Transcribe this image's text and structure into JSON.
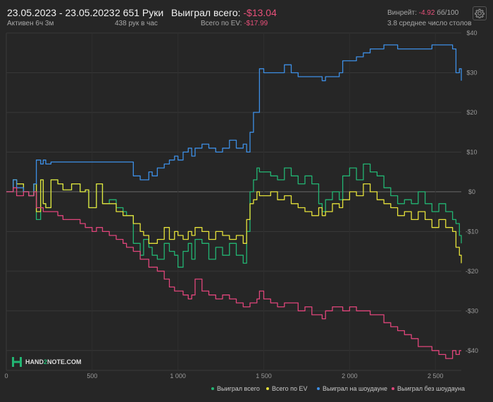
{
  "header": {
    "date_range": "23.05.2023 - 23.05.2023",
    "active": "Активен 6ч 3м",
    "hands": "2 651 Руки",
    "hands_per_hour": "438 рук в час",
    "won_total_label": "Выиграл всего:",
    "won_total_value": "-$13.04",
    "ev_total_label": "Всего по EV:",
    "ev_total_value": "-$17.99",
    "winrate_label": "Винрейт:",
    "winrate_value": "-4.92",
    "winrate_unit": "бб/100",
    "avg_tables": "3.8 среднее число столов"
  },
  "logo": {
    "text_a": "HAND",
    "text_b": "2",
    "text_c": "NOTE.COM"
  },
  "colors": {
    "won": "#22b573",
    "ev": "#e6e23a",
    "showdown": "#3d8fe6",
    "nonshowdown": "#e0457b",
    "negative": "#e8507a"
  },
  "icons": {
    "settings": "gear-icon"
  },
  "chart_data": {
    "type": "line",
    "xlim": [
      0,
      2651
    ],
    "ylim": [
      -45,
      40
    ],
    "x_ticks": [
      0,
      500,
      1000,
      1500,
      2000,
      2500
    ],
    "x_tick_labels": [
      "0",
      "500",
      "1 000",
      "1 500",
      "2 000",
      "2 500"
    ],
    "y_ticks": [
      40,
      30,
      20,
      10,
      0,
      -10,
      -20,
      -30,
      -40
    ],
    "y_tick_labels": [
      "$40",
      "$30",
      "$20",
      "$10",
      "$0",
      "-$10",
      "-$20",
      "-$30",
      "-$40"
    ],
    "grid": true,
    "legend_position": "bottom-right",
    "series": [
      {
        "name": "Выиграл всего",
        "color": "#22b573",
        "x": [
          0,
          40,
          60,
          100,
          130,
          160,
          175,
          200,
          215,
          230,
          260,
          300,
          330,
          380,
          430,
          460,
          480,
          500,
          525,
          560,
          600,
          640,
          680,
          700,
          740,
          780,
          800,
          830,
          850,
          880,
          920,
          950,
          980,
          1000,
          1030,
          1060,
          1080,
          1100,
          1140,
          1180,
          1220,
          1260,
          1300,
          1340,
          1380,
          1400,
          1420,
          1440,
          1460,
          1475,
          1500,
          1540,
          1580,
          1620,
          1660,
          1700,
          1740,
          1780,
          1820,
          1840,
          1860,
          1900,
          1940,
          1960,
          2000,
          2040,
          2080,
          2120,
          2160,
          2200,
          2240,
          2280,
          2320,
          2360,
          2400,
          2440,
          2480,
          2520,
          2560,
          2600,
          2620,
          2640,
          2651
        ],
        "y": [
          0,
          3,
          2,
          0,
          -1,
          2,
          -7,
          3,
          -3,
          -4,
          3,
          2,
          0.5,
          2,
          0,
          0.5,
          -4,
          -4,
          2,
          -3,
          -2,
          -4,
          -5,
          -6,
          -13,
          -16,
          -12,
          -14,
          -16,
          -17,
          -13,
          -15,
          -16,
          -19,
          -15,
          -13,
          -17,
          -12,
          -13,
          -17,
          -14,
          -16,
          -13,
          -16,
          -18,
          -10,
          0,
          3,
          6,
          5,
          5,
          4,
          3,
          6,
          4,
          2,
          4,
          2,
          -3,
          -5,
          -2,
          0,
          -2,
          4,
          6,
          3,
          7,
          5,
          4,
          1,
          -1,
          -3,
          -2,
          -3,
          0,
          -3,
          -5,
          -3,
          -5,
          -7,
          -8,
          -11,
          -13
        ]
      },
      {
        "name": "Всего по EV",
        "color": "#e6e23a",
        "x": [
          0,
          40,
          60,
          100,
          130,
          160,
          175,
          200,
          215,
          230,
          260,
          300,
          330,
          380,
          430,
          460,
          480,
          500,
          525,
          560,
          600,
          640,
          680,
          700,
          740,
          780,
          800,
          830,
          850,
          880,
          920,
          950,
          980,
          1000,
          1030,
          1060,
          1080,
          1100,
          1140,
          1180,
          1220,
          1260,
          1300,
          1340,
          1380,
          1400,
          1420,
          1440,
          1460,
          1475,
          1500,
          1540,
          1580,
          1620,
          1660,
          1700,
          1740,
          1780,
          1820,
          1840,
          1860,
          1900,
          1940,
          1960,
          2000,
          2040,
          2080,
          2120,
          2160,
          2200,
          2240,
          2280,
          2320,
          2360,
          2400,
          2440,
          2480,
          2520,
          2560,
          2600,
          2620,
          2640,
          2651
        ],
        "y": [
          0,
          3,
          2,
          0,
          -1,
          2,
          -5,
          3,
          -3,
          -4,
          3,
          2,
          0.5,
          2,
          0,
          0.5,
          -4,
          -4,
          2,
          -3,
          -3,
          -5,
          -6,
          -6,
          -8,
          -10,
          -11,
          -13,
          -13,
          -12,
          -9,
          -12,
          -10,
          -11,
          -12,
          -10,
          -11,
          -9,
          -10,
          -12,
          -10,
          -11,
          -12,
          -11,
          -13,
          -7,
          -3,
          -2,
          0,
          -1,
          -1,
          0,
          -2,
          -1,
          -3,
          -4,
          -5,
          -6,
          -4,
          -6,
          -5,
          -3,
          -4,
          -2,
          0,
          -1,
          2,
          0,
          -2,
          -3,
          -4,
          -6,
          -5,
          -7,
          -5,
          -7,
          -9,
          -7,
          -9,
          -10,
          -14,
          -16,
          -18
        ]
      },
      {
        "name": "Выиграл на шоудауне",
        "color": "#3d8fe6",
        "x": [
          0,
          40,
          60,
          100,
          130,
          160,
          175,
          200,
          215,
          230,
          260,
          300,
          330,
          380,
          430,
          460,
          480,
          500,
          525,
          560,
          600,
          640,
          680,
          700,
          740,
          780,
          800,
          830,
          850,
          880,
          920,
          950,
          980,
          1000,
          1030,
          1060,
          1080,
          1100,
          1140,
          1180,
          1220,
          1260,
          1300,
          1340,
          1380,
          1400,
          1420,
          1440,
          1460,
          1475,
          1500,
          1540,
          1580,
          1620,
          1660,
          1700,
          1740,
          1780,
          1820,
          1840,
          1860,
          1900,
          1940,
          1960,
          2000,
          2040,
          2080,
          2120,
          2160,
          2200,
          2240,
          2280,
          2320,
          2360,
          2400,
          2440,
          2480,
          2520,
          2560,
          2600,
          2620,
          2640,
          2651
        ],
        "y": [
          0,
          3,
          1,
          0,
          -1,
          2,
          8,
          7,
          8,
          7,
          7.5,
          7.5,
          7.5,
          7.5,
          7.5,
          7.5,
          7.5,
          7.5,
          7.5,
          7.5,
          7.5,
          7.5,
          7.5,
          7.5,
          4,
          3,
          3,
          5,
          4,
          6,
          7,
          8,
          9,
          8,
          10,
          11,
          9,
          11,
          12,
          11,
          10,
          11,
          13,
          11,
          12,
          10,
          15,
          20,
          20,
          31,
          30,
          30,
          30,
          32,
          30,
          29,
          29,
          29,
          29,
          28,
          29,
          29,
          30,
          33,
          33,
          34,
          35,
          36,
          36,
          37,
          37,
          36,
          36,
          36,
          36,
          36,
          37,
          37,
          37,
          36,
          30,
          31,
          28
        ]
      },
      {
        "name": "Выиграл без шоудауна",
        "color": "#e0457b",
        "x": [
          0,
          40,
          60,
          100,
          130,
          160,
          175,
          200,
          215,
          230,
          260,
          300,
          330,
          380,
          430,
          460,
          480,
          500,
          525,
          560,
          600,
          640,
          680,
          700,
          740,
          780,
          800,
          830,
          850,
          880,
          920,
          950,
          980,
          1000,
          1030,
          1060,
          1080,
          1100,
          1140,
          1180,
          1220,
          1260,
          1300,
          1340,
          1380,
          1400,
          1420,
          1440,
          1460,
          1475,
          1500,
          1540,
          1580,
          1620,
          1660,
          1700,
          1740,
          1780,
          1820,
          1840,
          1860,
          1900,
          1940,
          1960,
          2000,
          2040,
          2080,
          2120,
          2160,
          2200,
          2240,
          2280,
          2320,
          2360,
          2400,
          2440,
          2480,
          2520,
          2560,
          2600,
          2620,
          2640,
          2651
        ],
        "y": [
          0,
          1,
          -1,
          0,
          -1,
          0,
          -4,
          -4,
          -5,
          -5,
          -5,
          -6,
          -7,
          -7,
          -8,
          -9,
          -9,
          -10,
          -9,
          -10,
          -11,
          -12,
          -13,
          -14,
          -15,
          -17,
          -17,
          -19,
          -19,
          -20,
          -22,
          -24,
          -25,
          -25,
          -26,
          -27,
          -26,
          -22,
          -25,
          -26,
          -27,
          -26,
          -27,
          -28,
          -29,
          -29,
          -28,
          -28,
          -27,
          -25,
          -27,
          -28,
          -29,
          -28,
          -28,
          -30,
          -29,
          -31,
          -31,
          -32,
          -30,
          -29,
          -29,
          -30,
          -29,
          -30,
          -30,
          -31,
          -31,
          -33,
          -34,
          -35,
          -36,
          -37,
          -39,
          -39,
          -40,
          -41,
          -42,
          -40,
          -41,
          -40,
          -40
        ]
      }
    ]
  }
}
